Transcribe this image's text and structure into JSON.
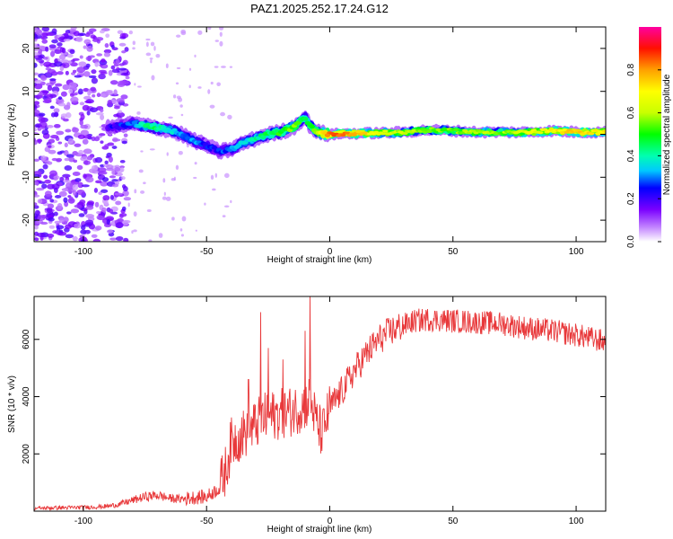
{
  "title": "PAZ1.2025.252.17.24.G12",
  "colors": {
    "line": "#e8383a",
    "axis": "#000000",
    "ridge_low": "#7a00ff",
    "ridge_high": "#ff1010"
  },
  "chart_data": [
    {
      "type": "heatmap",
      "name": "spectrogram",
      "xlabel": "Height of straight line (km)",
      "ylabel": "Frequency (Hz)",
      "xlim": [
        -120,
        112
      ],
      "ylim": [
        -25,
        25
      ],
      "xticks": [
        -100,
        -50,
        0,
        50,
        100
      ],
      "yticks": [
        -20,
        -10,
        0,
        10,
        20
      ],
      "xtick_labels": [
        "-100",
        "-50",
        "0",
        "50",
        "100"
      ],
      "ytick_labels": [
        "-20",
        "-10",
        "0",
        "10",
        "20"
      ],
      "ridge": {
        "x": [
          -90,
          -80,
          -75,
          -70,
          -65,
          -60,
          -55,
          -50,
          -45,
          -40,
          -35,
          -30,
          -25,
          -20,
          -15,
          -12,
          -10,
          -8,
          -5,
          0,
          10,
          20,
          30,
          40,
          50,
          60,
          70,
          80,
          90,
          100,
          112
        ],
        "freq": [
          1.5,
          2.5,
          2,
          1.5,
          1,
          0,
          -1.5,
          -2.5,
          -4,
          -3.5,
          -2,
          -1,
          0,
          0.5,
          1.5,
          3,
          4,
          2,
          0.5,
          0,
          0.2,
          0.3,
          0.5,
          1,
          0.8,
          0.5,
          0.5,
          0.5,
          0.8,
          0.5,
          0.5
        ],
        "amplitude": [
          0.2,
          0.3,
          0.4,
          0.45,
          0.35,
          0.3,
          0.3,
          0.25,
          0.25,
          0.3,
          0.35,
          0.4,
          0.45,
          0.5,
          0.55,
          0.5,
          0.45,
          0.5,
          0.6,
          0.85,
          0.8,
          0.65,
          0.6,
          0.55,
          0.55,
          0.6,
          0.55,
          0.65,
          0.7,
          0.75,
          0.7
        ]
      },
      "colorbar": {
        "label": "Normalized spectral amplitude",
        "range": [
          0,
          1
        ],
        "ticks": [
          0.0,
          0.2,
          0.4,
          0.6,
          0.8
        ],
        "tick_labels": [
          "0.0",
          "0.2",
          "0.4",
          "0.6",
          "0.8"
        ]
      }
    },
    {
      "type": "line",
      "name": "snr",
      "xlabel": "Height of straight line (km)",
      "ylabel": "SNR (10 * v/v)",
      "xlim": [
        -120,
        112
      ],
      "ylim": [
        0,
        7500
      ],
      "xticks": [
        -100,
        -50,
        0,
        50,
        100
      ],
      "yticks": [
        2000,
        4000,
        6000
      ],
      "xtick_labels": [
        "-100",
        "-50",
        "0",
        "50",
        "100"
      ],
      "ytick_labels": [
        "2000",
        "4000",
        "6000"
      ],
      "series": [
        {
          "name": "SNR",
          "x": [
            -120,
            -110,
            -100,
            -90,
            -85,
            -80,
            -75,
            -70,
            -65,
            -60,
            -55,
            -50,
            -45,
            -42,
            -40,
            -35,
            -30,
            -28,
            -25,
            -20,
            -15,
            -10,
            -8,
            -5,
            -3,
            0,
            5,
            10,
            15,
            20,
            25,
            30,
            35,
            40,
            50,
            60,
            70,
            80,
            90,
            100,
            105,
            110,
            112
          ],
          "y": [
            100,
            120,
            130,
            170,
            250,
            380,
            500,
            560,
            450,
            420,
            480,
            500,
            800,
            1500,
            2400,
            2700,
            3000,
            3200,
            3300,
            3400,
            3500,
            3700,
            3900,
            3000,
            2700,
            3600,
            4200,
            4900,
            5500,
            6000,
            6300,
            6500,
            6650,
            6700,
            6650,
            6600,
            6550,
            6400,
            6300,
            6150,
            6050,
            5950,
            5900
          ]
        }
      ],
      "spikes": {
        "x": [
          -33,
          -28,
          -25,
          -19,
          -10,
          -8
        ],
        "y": [
          4600,
          6950,
          5700,
          5300,
          6300,
          7500
        ]
      }
    }
  ]
}
